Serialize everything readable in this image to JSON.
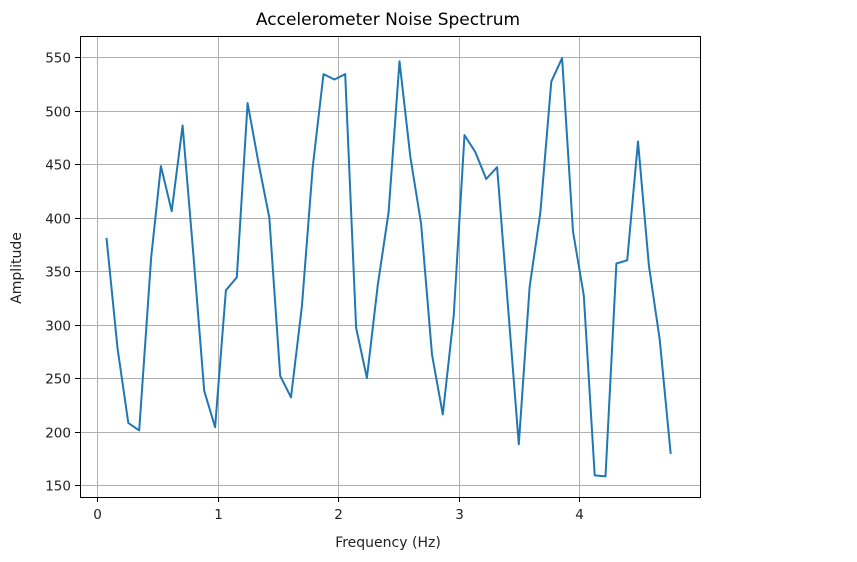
{
  "chart_data": {
    "type": "line",
    "title": "Accelerometer Noise Spectrum",
    "xlabel": "Frequency (Hz)",
    "ylabel": "Amplitude",
    "xlim": [
      -0.14,
      5.0
    ],
    "ylim": [
      137,
      568
    ],
    "xticks": [
      0,
      1,
      2,
      3,
      4
    ],
    "yticks": [
      150,
      200,
      250,
      300,
      350,
      400,
      450,
      500,
      550
    ],
    "grid": true,
    "legend": null,
    "series": [
      {
        "name": "Amplitude",
        "color": "#1f77b4",
        "x": [
          0.08,
          0.17,
          0.26,
          0.35,
          0.45,
          0.53,
          0.62,
          0.71,
          0.8,
          0.89,
          0.98,
          1.07,
          1.16,
          1.25,
          1.34,
          1.43,
          1.52,
          1.61,
          1.7,
          1.79,
          1.88,
          1.97,
          2.06,
          2.15,
          2.24,
          2.33,
          2.42,
          2.51,
          2.6,
          2.69,
          2.78,
          2.87,
          2.96,
          3.05,
          3.14,
          3.23,
          3.32,
          3.41,
          3.5,
          3.59,
          3.68,
          3.77,
          3.86,
          3.95,
          4.04,
          4.13,
          4.22,
          4.31,
          4.4,
          4.49,
          4.58,
          4.67,
          4.76
        ],
        "values": [
          380,
          278,
          208,
          201,
          363,
          448,
          406,
          486,
          365,
          238,
          204,
          332,
          344,
          507,
          451,
          400,
          252,
          232,
          317,
          447,
          534,
          529,
          534,
          297,
          250,
          337,
          405,
          546,
          457,
          394,
          272,
          216,
          308,
          477,
          461,
          436,
          447,
          318,
          188,
          335,
          405,
          527,
          549,
          387,
          327,
          159,
          158,
          357,
          360,
          471,
          355,
          286,
          180
        ]
      }
    ]
  }
}
